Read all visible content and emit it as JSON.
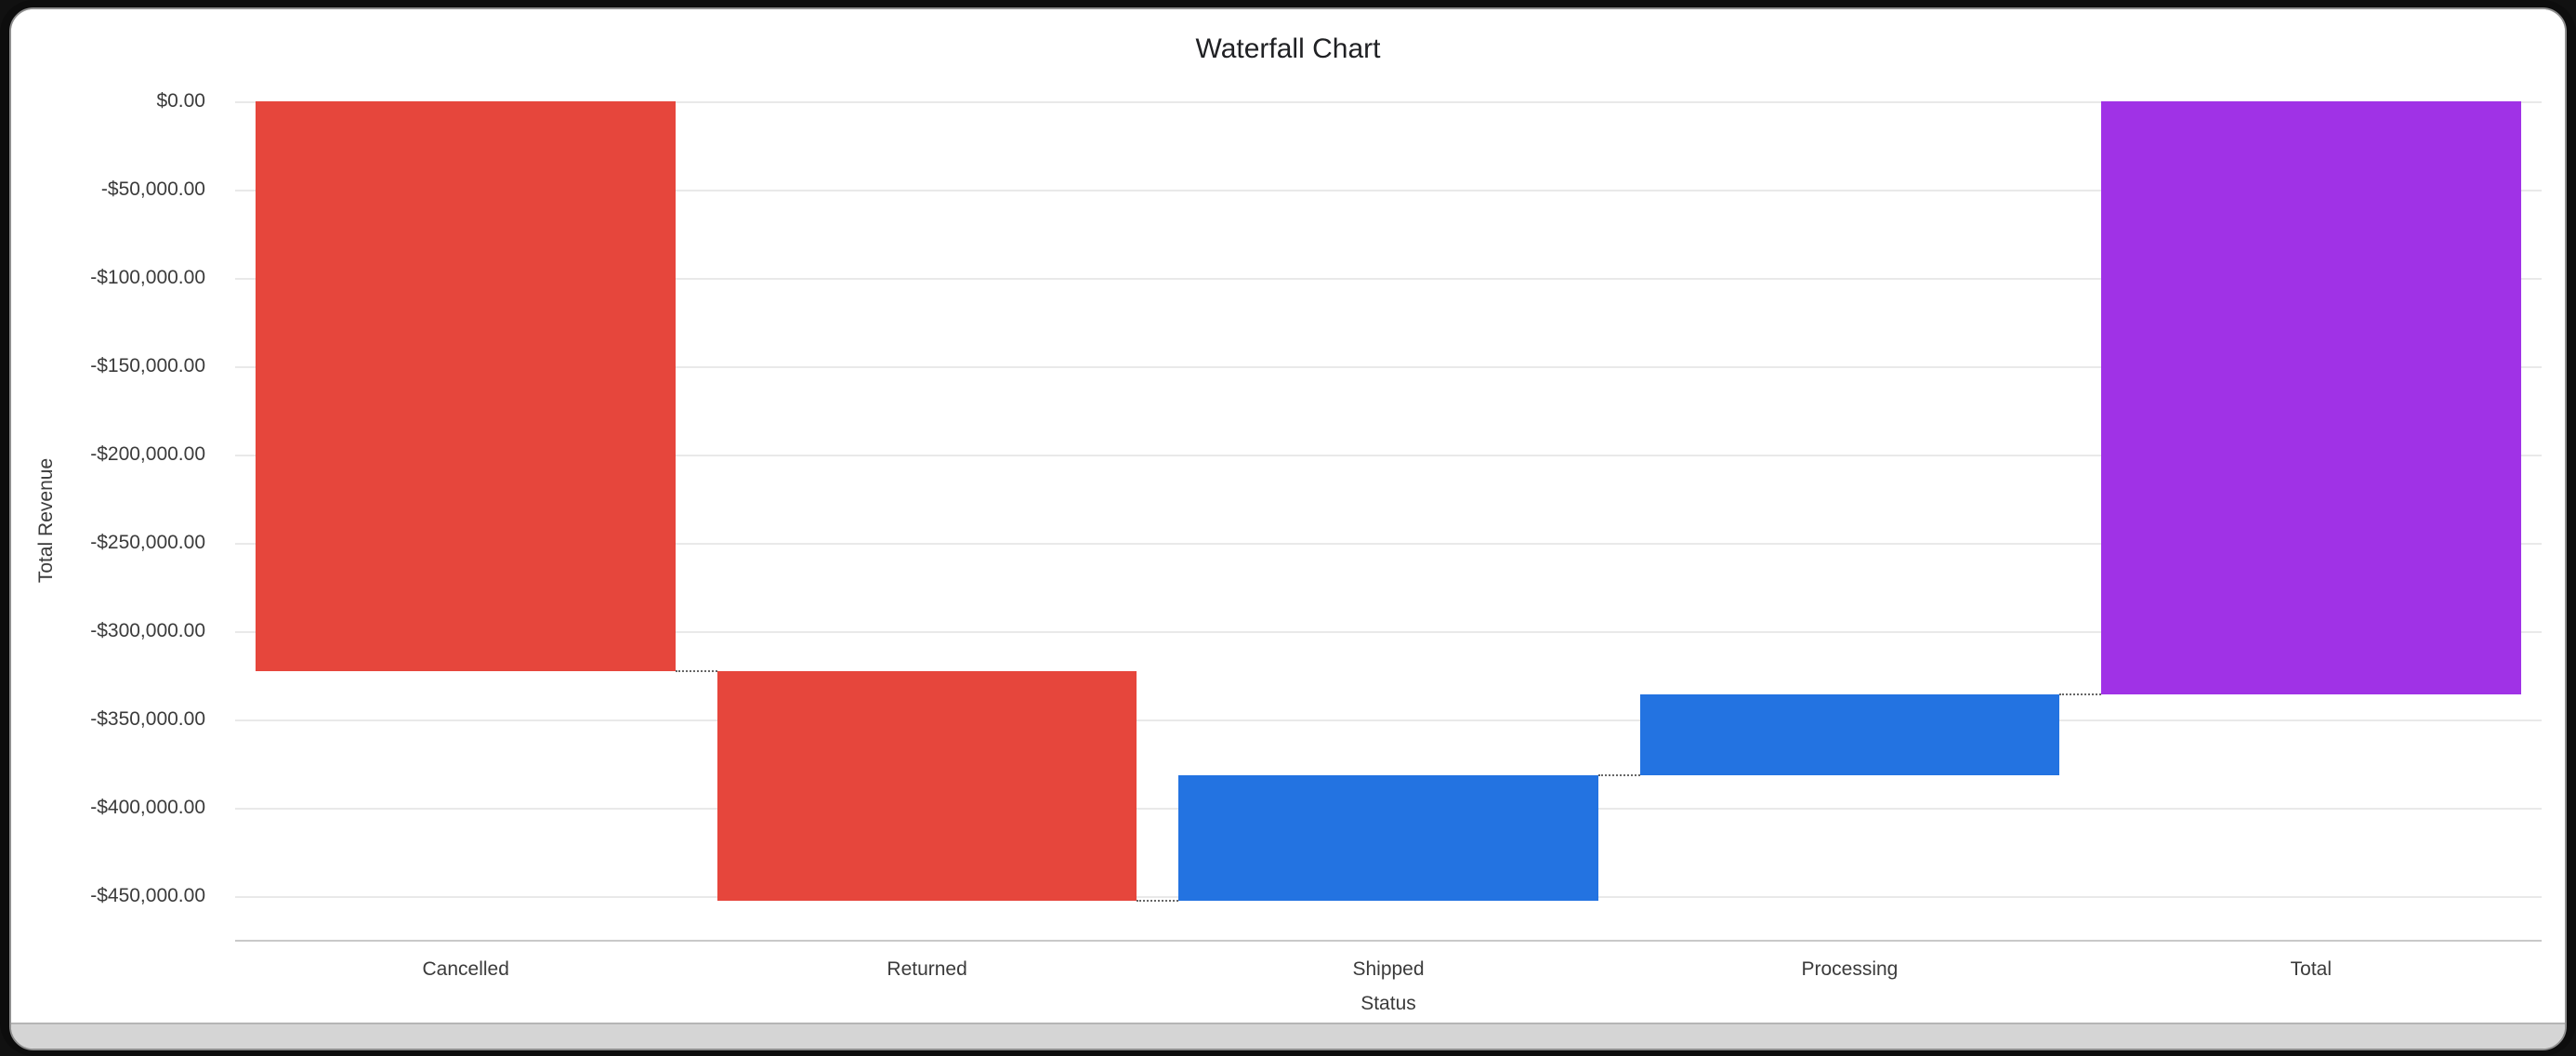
{
  "chart_data": {
    "type": "waterfall",
    "title": "Waterfall Chart",
    "xlabel": "Status",
    "ylabel": "Total Revenue",
    "categories": [
      "Cancelled",
      "Returned",
      "Shipped",
      "Processing",
      "Total"
    ],
    "ylim": [
      -475000,
      0
    ],
    "grid": "horizontal",
    "legend": "none",
    "y_ticks": [
      {
        "label": "$0.00",
        "value": 0
      },
      {
        "label": "-$50,000.00",
        "value": -50000
      },
      {
        "label": "-$100,000.00",
        "value": -100000
      },
      {
        "label": "-$150,000.00",
        "value": -150000
      },
      {
        "label": "-$200,000.00",
        "value": -200000
      },
      {
        "label": "-$250,000.00",
        "value": -250000
      },
      {
        "label": "-$300,000.00",
        "value": -300000
      },
      {
        "label": "-$350,000.00",
        "value": -350000
      },
      {
        "label": "-$400,000.00",
        "value": -400000
      },
      {
        "label": "-$450,000.00",
        "value": -450000
      }
    ],
    "steps": [
      {
        "label": "Cancelled",
        "start": 0,
        "end": -323000,
        "delta": -323000,
        "kind": "decrease"
      },
      {
        "label": "Returned",
        "start": -323000,
        "end": -453000,
        "delta": -130000,
        "kind": "decrease"
      },
      {
        "label": "Shipped",
        "start": -453000,
        "end": -382000,
        "delta": 71000,
        "kind": "increase"
      },
      {
        "label": "Processing",
        "start": -382000,
        "end": -336000,
        "delta": 46000,
        "kind": "increase"
      },
      {
        "label": "Total",
        "start": 0,
        "end": -336000,
        "delta": -336000,
        "kind": "total"
      }
    ],
    "colors": {
      "increase": "#2373E1",
      "decrease": "#E6463C",
      "total": "#A032E6",
      "gridline": "#e9e9e9",
      "axis_line": "#c9c9c9",
      "connector": "#666666"
    },
    "bar_width_ratio": 0.91
  }
}
